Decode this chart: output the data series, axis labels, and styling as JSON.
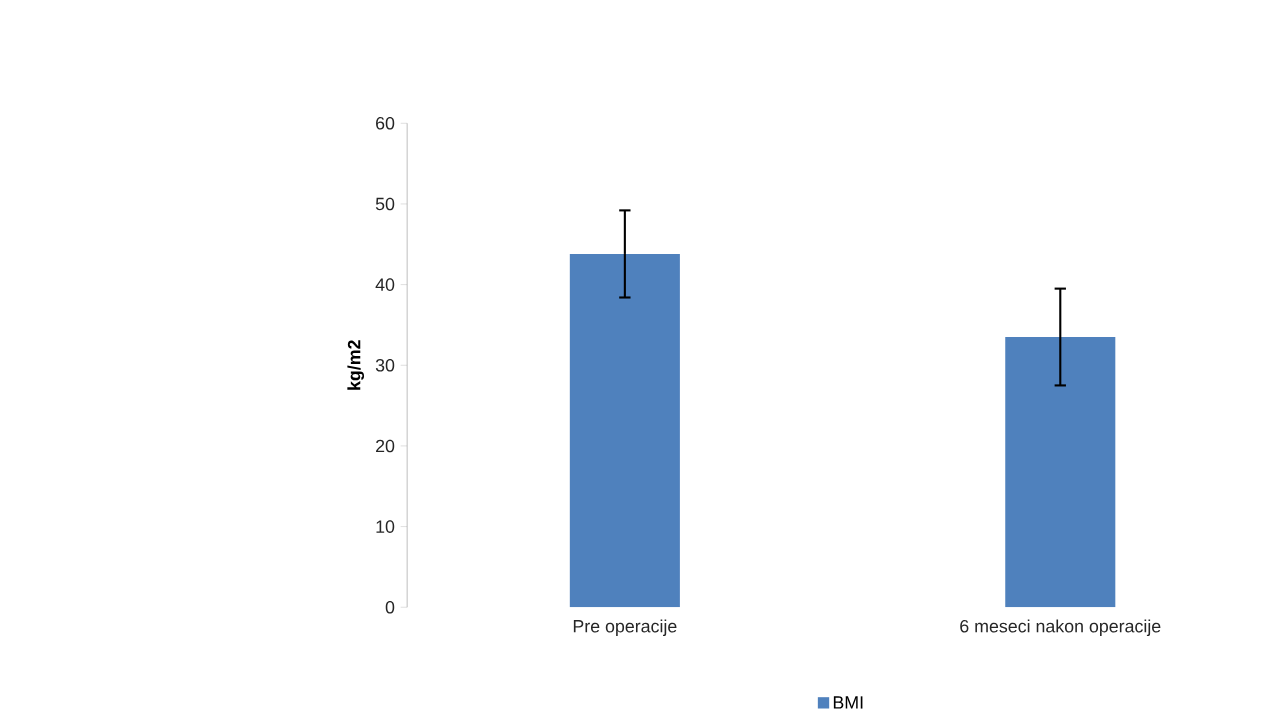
{
  "chart_data": {
    "type": "bar",
    "ylabel": "kg/m2",
    "categories": [
      "Pre operacije",
      "6 meseci nakon operacije"
    ],
    "series": [
      {
        "name": "BMI",
        "color": "#4f81bd",
        "values": [
          43.8,
          33.5
        ],
        "errors": [
          5.4,
          6.0
        ]
      }
    ],
    "ylim": [
      0,
      60
    ],
    "yticks": [
      0,
      10,
      20,
      30,
      40,
      50,
      60
    ],
    "grid": false,
    "legend": "bottom"
  }
}
